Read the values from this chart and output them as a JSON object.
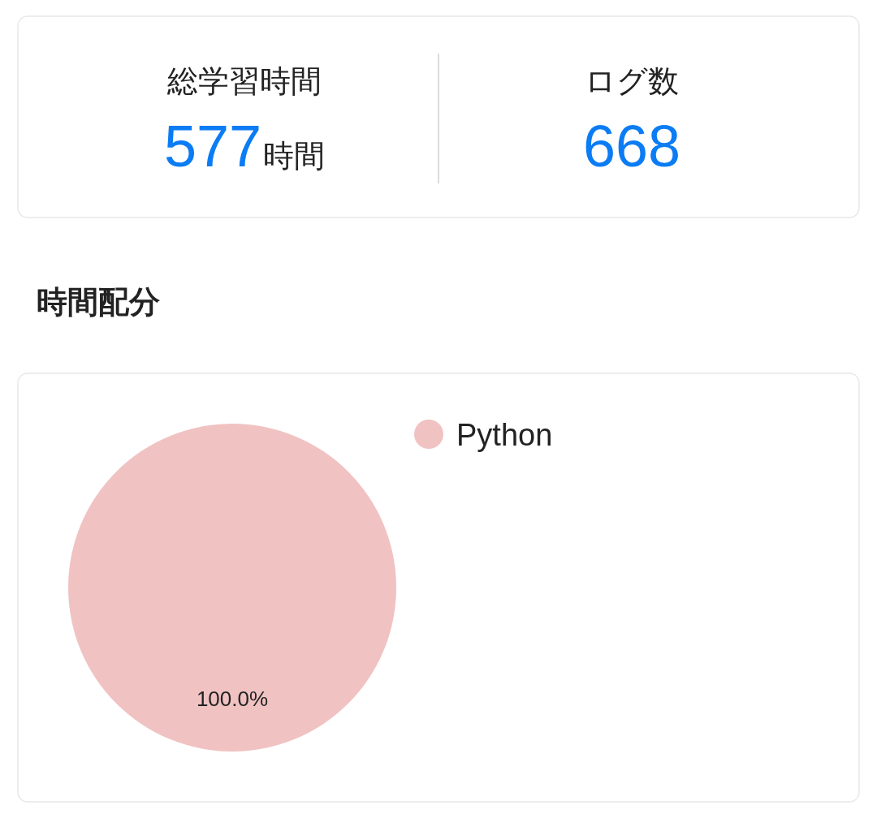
{
  "chart_data": [
    {
      "type": "other",
      "annotations": [
        "総学習時間",
        "577",
        "時間",
        "ログ数",
        "668"
      ]
    },
    {
      "type": "pie",
      "title": "時間配分",
      "categories": [
        "Python"
      ],
      "values": [
        100
      ],
      "colors": [
        "#f1c2c2"
      ],
      "value_labels": [
        "100.0%"
      ],
      "legend": "right"
    }
  ]
}
